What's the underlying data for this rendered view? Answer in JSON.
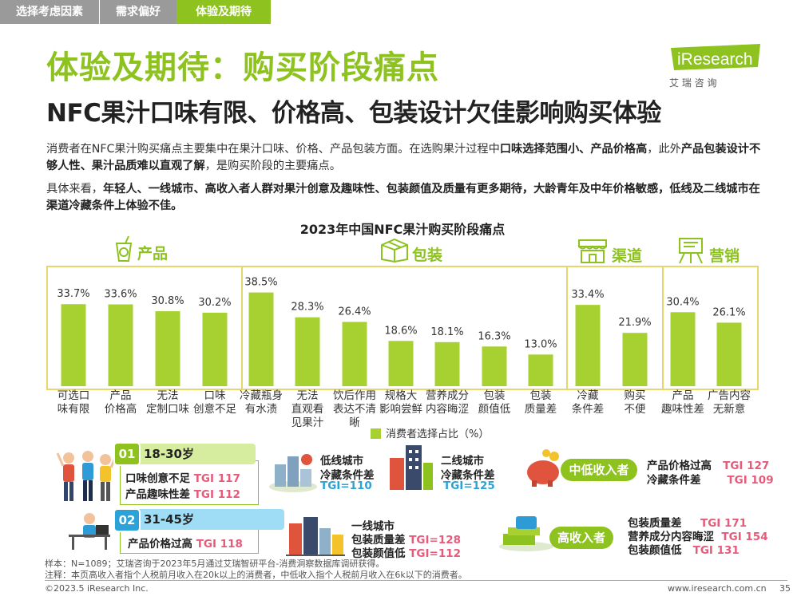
{
  "tabs": [
    "选择考虑因素",
    "需求偏好",
    "体验及期待"
  ],
  "title": "体验及期待：购买阶段痛点",
  "subtitle": "NFC果汁口味有限、价格高、包装设计欠佳影响购买体验",
  "logo": {
    "brand": "iResearch",
    "cn": "艾  瑞  咨  询"
  },
  "para1": {
    "a": "消费者在NFC果汁购买痛点主要集中在果汁口味、价格、产品包装方面。在选购果汁过程中",
    "b": "口味选择范围小、产品价格高",
    "c": "，此外",
    "d": "产品包装设计不够人性、果汁品质难以直观了解",
    "e": "，是购买阶段的主要痛点。"
  },
  "para2": {
    "a": "具体来看，",
    "b": "年轻人、一线城市、高收入者人群对果汁创意及趣味性、包装颜值及质量有更多期待，大龄青年及中年价格敏感，低线及二线城市在渠道冷藏条件上体验不佳。"
  },
  "chart_data": {
    "type": "bar",
    "title": "2023年中国NFC果汁购买阶段痛点",
    "legend": "消费者选择占比（%）",
    "unit": "%",
    "ylim": [
      0,
      45
    ],
    "groups": [
      {
        "name": "产品",
        "items": [
          {
            "label": [
              "可选口",
              "味有限"
            ],
            "value": 33.7
          },
          {
            "label": [
              "产品",
              "价格高"
            ],
            "value": 33.6
          },
          {
            "label": [
              "无法",
              "定制口味"
            ],
            "value": 30.8
          },
          {
            "label": [
              "口味",
              "创意不足"
            ],
            "value": 30.2
          }
        ]
      },
      {
        "name": "包装",
        "items": [
          {
            "label": [
              "冷藏瓶身",
              "有水渍"
            ],
            "value": 38.5
          },
          {
            "label": [
              "无法",
              "直观看",
              "见果汁"
            ],
            "value": 28.3
          },
          {
            "label": [
              "饮后作用",
              "表达不清",
              "晰"
            ],
            "value": 26.4
          },
          {
            "label": [
              "规格大",
              "影响尝鲜"
            ],
            "value": 18.6
          },
          {
            "label": [
              "营养成分",
              "内容晦涩"
            ],
            "value": 18.1
          },
          {
            "label": [
              "包装",
              "颜值低"
            ],
            "value": 16.3
          },
          {
            "label": [
              "包装",
              "质量差"
            ],
            "value": 13.0
          }
        ]
      },
      {
        "name": "渠道",
        "items": [
          {
            "label": [
              "冷藏",
              "条件差"
            ],
            "value": 33.4
          },
          {
            "label": [
              "购买",
              "不便"
            ],
            "value": 21.9
          }
        ]
      },
      {
        "name": "营销",
        "items": [
          {
            "label": [
              "产品",
              "趣味性差"
            ],
            "value": 30.4
          },
          {
            "label": [
              "广告内容",
              "无新意"
            ],
            "value": 26.1
          }
        ]
      }
    ]
  },
  "age1": {
    "num": "01",
    "range": "18-30岁",
    "rows": [
      {
        "label": "口味创意不足",
        "tgi": "TGI 117"
      },
      {
        "label": "产品趣味性差",
        "tgi": "TGI 112"
      }
    ]
  },
  "age2": {
    "num": "02",
    "range": "31-45岁",
    "rows": [
      {
        "label": "产品价格过高",
        "tgi": "TGI 118"
      }
    ]
  },
  "city_low": {
    "l1": "低线城市",
    "l2": "冷藏条件差",
    "tgi": "TGI=110"
  },
  "city_second": {
    "l1": "二线城市",
    "l2": "冷藏条件差",
    "tgi": "TGI=125"
  },
  "city_first": {
    "l1": "一线城市",
    "rows": [
      {
        "label": "包装质量差",
        "tgi": "TGI=128"
      },
      {
        "label": "包装颜值低",
        "tgi": "TGI=112"
      }
    ]
  },
  "income_mid": {
    "label": "中低收入者",
    "rows": [
      {
        "label": "产品价格过高",
        "tgi": "TGI 127"
      },
      {
        "label": "冷藏条件差",
        "tgi": "TGI 109"
      }
    ]
  },
  "income_high": {
    "label": "高收入者",
    "rows": [
      {
        "label": "包装质量差",
        "tgi": "TGI 171"
      },
      {
        "label": "营养成分内容晦涩",
        "tgi": "TGI 154"
      },
      {
        "label": "包装颜值低",
        "tgi": "TGI 131"
      }
    ]
  },
  "footer": {
    "sample": "样本：N=1089；艾瑞咨询于2023年5月通过艾瑞智研平台-消费洞察数据库调研获得。",
    "note": "注释：本页高收入者指个人税前月收入在20k以上的消费者，中低收入指个人税前月收入在6k以下的消费者。",
    "copyright": "©2023.5 iResearch Inc.",
    "url": "www.iresearch.com.cn",
    "page": "35"
  },
  "colors": {
    "green": "#8dc21f",
    "bar": "#a7d130",
    "box": "#e7d76a",
    "tgi": "#e65a7a"
  }
}
